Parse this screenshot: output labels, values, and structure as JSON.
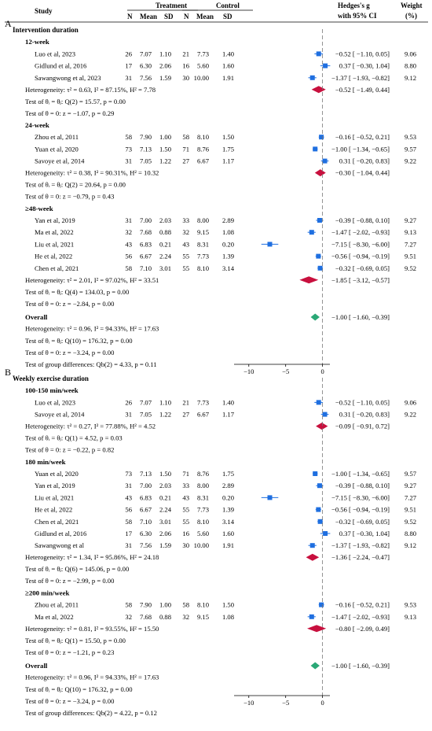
{
  "header": {
    "study": "Study",
    "treatment": "Treatment",
    "control": "Control",
    "n": "N",
    "mean": "Mean",
    "sd": "SD",
    "effect_line1": "Hedges's g",
    "effect_line2": "with 95% CI",
    "weight_line1": "Weight",
    "weight_line2": "(%)"
  },
  "chart_data": [
    {
      "type": "forest",
      "panel": "A",
      "section_title": "Intervention duration",
      "xlim": [
        -12,
        1
      ],
      "x_ticks": [
        -10,
        -5,
        0
      ],
      "reference_line": 0,
      "subgroups": [
        {
          "name": "12-week",
          "studies": [
            {
              "study": "Luo et al, 2023",
              "n1": "26",
              "mean1": "7.07",
              "sd1": "1.10",
              "n2": "21",
              "mean2": "7.73",
              "sd2": "1.40",
              "g": -0.52,
              "lo": -1.1,
              "hi": 0.05,
              "ci_text": "−0.52 [ −1.10,  0.05]",
              "weight": "9.06"
            },
            {
              "study": "Gidlund et al, 2016",
              "n1": "17",
              "mean1": "6.30",
              "sd1": "2.06",
              "n2": "16",
              "mean2": "5.60",
              "sd2": "1.60",
              "g": 0.37,
              "lo": -0.3,
              "hi": 1.04,
              "ci_text": "0.37 [ −0.30,  1.04]",
              "weight": "8.80"
            },
            {
              "study": "Sawangwong et al, 2023",
              "n1": "31",
              "mean1": "7.56",
              "sd1": "1.59",
              "n2": "30",
              "mean2": "10.00",
              "sd2": "1.91",
              "g": -1.37,
              "lo": -1.93,
              "hi": -0.82,
              "ci_text": "−1.37 [ −1.93, −0.82]",
              "weight": "9.12"
            }
          ],
          "overall": {
            "g": -0.52,
            "lo": -1.49,
            "hi": 0.44,
            "ci_text": "−0.52 [ −1.49,  0.44]"
          },
          "stats": [
            "Heterogeneity:  τ² = 0.63, I² = 87.15%, H² = 7.78",
            "Test of  θᵢ = θⱼ: Q(2) = 15.57, p = 0.00",
            "Test of  θ = 0: z = −1.07, p = 0.29"
          ]
        },
        {
          "name": "24-week",
          "studies": [
            {
              "study": "Zhou et al, 2011",
              "n1": "58",
              "mean1": "7.90",
              "sd1": "1.00",
              "n2": "58",
              "mean2": "8.10",
              "sd2": "1.50",
              "g": -0.16,
              "lo": -0.52,
              "hi": 0.21,
              "ci_text": "−0.16 [ −0.52,  0.21]",
              "weight": "9.53"
            },
            {
              "study": "Yuan et al, 2020",
              "n1": "73",
              "mean1": "7.13",
              "sd1": "1.50",
              "n2": "71",
              "mean2": "8.76",
              "sd2": "1.75",
              "g": -1.0,
              "lo": -1.34,
              "hi": -0.65,
              "ci_text": "−1.00 [ −1.34, −0.65]",
              "weight": "9.57"
            },
            {
              "study": "Savoye et al, 2014",
              "n1": "31",
              "mean1": "7.05",
              "sd1": "1.22",
              "n2": "27",
              "mean2": "6.67",
              "sd2": "1.17",
              "g": 0.31,
              "lo": -0.2,
              "hi": 0.83,
              "ci_text": "0.31 [ −0.20,  0.83]",
              "weight": "9.22"
            }
          ],
          "overall": {
            "g": -0.3,
            "lo": -1.04,
            "hi": 0.44,
            "ci_text": "−0.30 [ −1.04,  0.44]"
          },
          "stats": [
            "Heterogeneity:  τ² = 0.38, I² = 90.31%, H² = 10.32",
            "Test of  θᵢ = θⱼ: Q(2) = 20.64, p = 0.00",
            "Test of  θ = 0: z = −0.79, p = 0.43"
          ]
        },
        {
          "name": "≥48-week",
          "studies": [
            {
              "study": "Yan et al, 2019",
              "n1": "31",
              "mean1": "7.00",
              "sd1": "2.03",
              "n2": "33",
              "mean2": "8.00",
              "sd2": "2.89",
              "g": -0.39,
              "lo": -0.88,
              "hi": 0.1,
              "ci_text": "−0.39 [ −0.88,  0.10]",
              "weight": "9.27"
            },
            {
              "study": "Ma et al, 2022",
              "n1": "32",
              "mean1": "7.68",
              "sd1": "0.88",
              "n2": "32",
              "mean2": "9.15",
              "sd2": "1.08",
              "g": -1.47,
              "lo": -2.02,
              "hi": -0.93,
              "ci_text": "−1.47 [ −2.02, −0.93]",
              "weight": "9.13"
            },
            {
              "study": "Liu et al, 2021",
              "n1": "43",
              "mean1": "6.83",
              "sd1": "0.21",
              "n2": "43",
              "mean2": "8.31",
              "sd2": "0.20",
              "g": -7.15,
              "lo": -8.3,
              "hi": -6.0,
              "ci_text": "−7.15 [ −8.30, −6.00]",
              "weight": "7.27"
            },
            {
              "study": "He et al, 2022",
              "n1": "56",
              "mean1": "6.67",
              "sd1": "2.24",
              "n2": "55",
              "mean2": "7.73",
              "sd2": "1.39",
              "g": -0.56,
              "lo": -0.94,
              "hi": -0.19,
              "ci_text": "−0.56 [ −0.94, −0.19]",
              "weight": "9.51"
            },
            {
              "study": "Chen et al, 2021",
              "n1": "58",
              "mean1": "7.10",
              "sd1": "3.01",
              "n2": "55",
              "mean2": "8.10",
              "sd2": "3.14",
              "g": -0.32,
              "lo": -0.69,
              "hi": 0.05,
              "ci_text": "−0.32 [ −0.69,  0.05]",
              "weight": "9.52"
            }
          ],
          "overall": {
            "g": -1.85,
            "lo": -3.12,
            "hi": -0.57,
            "ci_text": "−1.85 [ −3.12, −0.57]"
          },
          "stats": [
            "Heterogeneity:  τ² = 2.01, I² = 97.02%, H² = 33.51",
            "Test of  θᵢ = θⱼ: Q(4) = 134.03, p = 0.00",
            "Test of  θ = 0: z = −2.84, p = 0.00"
          ]
        }
      ],
      "overall": {
        "label": "Overall",
        "g": -1.0,
        "lo": -1.6,
        "hi": -0.39,
        "ci_text": "−1.00 [ −1.60, −0.39]",
        "stats": [
          "Heterogeneity:  τ² = 0.96, I² = 94.33%, H² = 17.63",
          "Test of  θᵢ = θⱼ: Q(10) = 176.32, p = 0.00",
          "Test of  θ = 0: z = −3.24, p = 0.00",
          "Test of group differences: Qb(2) = 4.33, p = 0.11"
        ]
      }
    },
    {
      "type": "forest",
      "panel": "B",
      "section_title": "Weekly exercise duration",
      "xlim": [
        -12,
        1
      ],
      "x_ticks": [
        -10,
        -5,
        0
      ],
      "reference_line": 0,
      "subgroups": [
        {
          "name": "100-150 min/week",
          "studies": [
            {
              "study": "Luo et al, 2023",
              "n1": "26",
              "mean1": "7.07",
              "sd1": "1.10",
              "n2": "21",
              "mean2": "7.73",
              "sd2": "1.40",
              "g": -0.52,
              "lo": -1.1,
              "hi": 0.05,
              "ci_text": "−0.52 [ −1.10,  0.05]",
              "weight": "9.06"
            },
            {
              "study": "Savoye et al, 2014",
              "n1": "31",
              "mean1": "7.05",
              "sd1": "1.22",
              "n2": "27",
              "mean2": "6.67",
              "sd2": "1.17",
              "g": 0.31,
              "lo": -0.2,
              "hi": 0.83,
              "ci_text": "0.31 [ −0.20,  0.83]",
              "weight": "9.22"
            }
          ],
          "overall": {
            "g": -0.09,
            "lo": -0.91,
            "hi": 0.72,
            "ci_text": "−0.09 [ −0.91,  0.72]"
          },
          "stats": [
            "Heterogeneity:  τ² = 0.27, I² = 77.88%, H² = 4.52",
            "Test of  θᵢ = θⱼ: Q(1) = 4.52, p = 0.03",
            "Test of  θ = 0: z = −0.22, p = 0.82"
          ]
        },
        {
          "name": "180 min/week",
          "studies": [
            {
              "study": "Yuan et al, 2020",
              "n1": "73",
              "mean1": "7.13",
              "sd1": "1.50",
              "n2": "71",
              "mean2": "8.76",
              "sd2": "1.75",
              "g": -1.0,
              "lo": -1.34,
              "hi": -0.65,
              "ci_text": "−1.00 [ −1.34, −0.65]",
              "weight": "9.57"
            },
            {
              "study": "Yan et al, 2019",
              "n1": "31",
              "mean1": "7.00",
              "sd1": "2.03",
              "n2": "33",
              "mean2": "8.00",
              "sd2": "2.89",
              "g": -0.39,
              "lo": -0.88,
              "hi": 0.1,
              "ci_text": "−0.39 [ −0.88,  0.10]",
              "weight": "9.27"
            },
            {
              "study": "Liu et al, 2021",
              "n1": "43",
              "mean1": "6.83",
              "sd1": "0.21",
              "n2": "43",
              "mean2": "8.31",
              "sd2": "0.20",
              "g": -7.15,
              "lo": -8.3,
              "hi": -6.0,
              "ci_text": "−7.15 [ −8.30, −6.00]",
              "weight": "7.27"
            },
            {
              "study": "He et al, 2022",
              "n1": "56",
              "mean1": "6.67",
              "sd1": "2.24",
              "n2": "55",
              "mean2": "7.73",
              "sd2": "1.39",
              "g": -0.56,
              "lo": -0.94,
              "hi": -0.19,
              "ci_text": "−0.56 [ −0.94, −0.19]",
              "weight": "9.51"
            },
            {
              "study": "Chen et al, 2021",
              "n1": "58",
              "mean1": "7.10",
              "sd1": "3.01",
              "n2": "55",
              "mean2": "8.10",
              "sd2": "3.14",
              "g": -0.32,
              "lo": -0.69,
              "hi": 0.05,
              "ci_text": "−0.32 [ −0.69,  0.05]",
              "weight": "9.52"
            },
            {
              "study": "Gidlund et al, 2016",
              "n1": "17",
              "mean1": "6.30",
              "sd1": "2.06",
              "n2": "16",
              "mean2": "5.60",
              "sd2": "1.60",
              "g": 0.37,
              "lo": -0.3,
              "hi": 1.04,
              "ci_text": "0.37 [ −0.30,  1.04]",
              "weight": "8.80"
            },
            {
              "study": "Sawangwong et al",
              "n1": "31",
              "mean1": "7.56",
              "sd1": "1.59",
              "n2": "30",
              "mean2": "10.00",
              "sd2": "1.91",
              "g": -1.37,
              "lo": -1.93,
              "hi": -0.82,
              "ci_text": "−1.37 [ −1.93, −0.82]",
              "weight": "9.12"
            }
          ],
          "overall": {
            "g": -1.36,
            "lo": -2.24,
            "hi": -0.47,
            "ci_text": "−1.36 [ −2.24, −0.47]"
          },
          "stats": [
            "Heterogeneity:  τ² = 1.34, I² = 95.86%, H² = 24.18",
            "Test of  θᵢ = θⱼ: Q(6) = 145.06, p = 0.00",
            "Test of  θ = 0: z = −2.99, p = 0.00"
          ]
        },
        {
          "name": "≥200 min/week",
          "studies": [
            {
              "study": "Zhou et al, 2011",
              "n1": "58",
              "mean1": "7.90",
              "sd1": "1.00",
              "n2": "58",
              "mean2": "8.10",
              "sd2": "1.50",
              "g": -0.16,
              "lo": -0.52,
              "hi": 0.21,
              "ci_text": "−0.16 [ −0.52,  0.21]",
              "weight": "9.53"
            },
            {
              "study": "Ma et al, 2022",
              "n1": "32",
              "mean1": "7.68",
              "sd1": "0.88",
              "n2": "32",
              "mean2": "9.15",
              "sd2": "1.08",
              "g": -1.47,
              "lo": -2.02,
              "hi": -0.93,
              "ci_text": "−1.47 [ −2.02, −0.93]",
              "weight": "9.13"
            }
          ],
          "overall": {
            "g": -0.8,
            "lo": -2.09,
            "hi": 0.49,
            "ci_text": "−0.80 [ −2.09,  0.49]"
          },
          "stats": [
            "Heterogeneity:  τ² = 0.81, I² = 93.55%, H² = 15.50",
            "Test of  θᵢ = θⱼ: Q(1) = 15.50, p = 0.00",
            "Test of  θ = 0: z = −1.21, p = 0.23"
          ]
        }
      ],
      "overall": {
        "label": "Overall",
        "g": -1.0,
        "lo": -1.6,
        "hi": -0.39,
        "ci_text": "−1.00 [ −1.60, −0.39]",
        "stats": [
          "Heterogeneity:  τ² = 0.96, I² = 94.33%, H² = 17.63",
          "Test of  θᵢ = θⱼ: Q(10) = 176.32, p = 0.00",
          "Test of  θ = 0: z = −3.24, p = 0.00",
          "Test of group differences: Qb(2) = 4.22, p = 0.12"
        ]
      }
    }
  ],
  "colors": {
    "study_marker": "#1f6fe0",
    "subgroup_diamond": "#c8103e",
    "overall_diamond": "#2aa876",
    "reference_line": "#777777"
  }
}
